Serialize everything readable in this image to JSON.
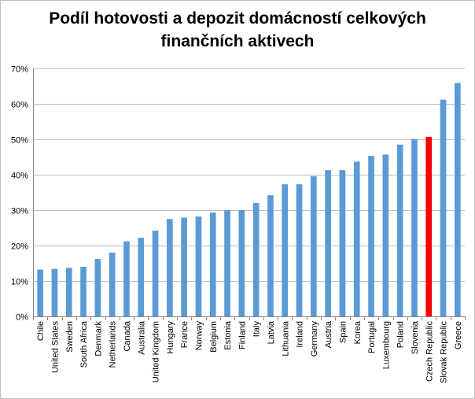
{
  "chart_data": {
    "type": "bar",
    "title": "Podíl hotovosti a depozit domácností celkových finančních aktivech",
    "title_lines": [
      "Podíl hotovosti a depozit domácností celkových",
      "finančních aktivech"
    ],
    "xlabel": "",
    "ylabel": "",
    "ylim": [
      0,
      70
    ],
    "y_ticks": [
      "0%",
      "10%",
      "20%",
      "30%",
      "40%",
      "50%",
      "60%",
      "70%"
    ],
    "grid": true,
    "legend": "none",
    "colors": {
      "default": "#5b9bd5",
      "highlight": "#ff0000",
      "grid": "#bfbfbf"
    },
    "highlight_category": "Czech Republic",
    "categories": [
      "Chile",
      "United States",
      "Sweden",
      "South Africa",
      "Denmark",
      "Netherlands",
      "Canada",
      "Australia",
      "United Kingdom",
      "Hungary",
      "France",
      "Norway",
      "Belgium",
      "Estonia",
      "Finland",
      "Italy",
      "Latvia",
      "Lithuania",
      "Ireland",
      "Germany",
      "Austria",
      "Spain",
      "Korea",
      "Portugal",
      "Luxembourg",
      "Poland",
      "Slovenia",
      "Czech Republic",
      "Slovak Republic",
      "Greece"
    ],
    "values": [
      13.2,
      13.4,
      13.7,
      14.0,
      16.2,
      18.0,
      21.2,
      22.2,
      24.2,
      27.5,
      27.9,
      28.2,
      29.3,
      30.0,
      30.0,
      32.0,
      34.2,
      37.3,
      37.3,
      39.6,
      41.3,
      41.3,
      43.7,
      45.3,
      45.7,
      48.5,
      50.1,
      50.7,
      61.2,
      65.9
    ]
  }
}
